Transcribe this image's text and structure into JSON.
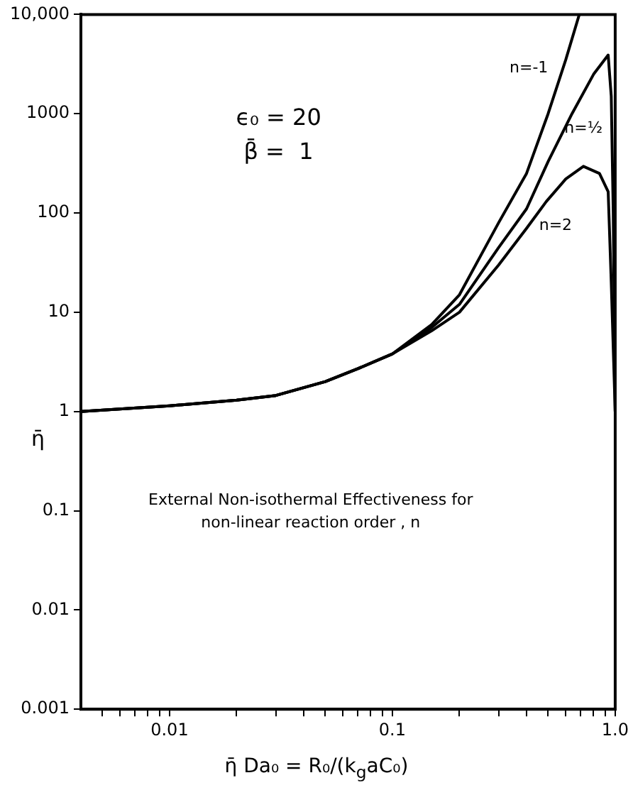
{
  "chart_data": {
    "type": "line",
    "xlabel": "η̄ Da₀ = R₀/(k$_{g}$aC₀)",
    "ylabel": "η̄",
    "log": "xy",
    "grid": false,
    "legend": false,
    "marker": "none",
    "line_style": "solid",
    "xlim": [
      0.004,
      1
    ],
    "ylim": [
      0.001,
      10000
    ],
    "xticks": [
      {
        "value": 0.005,
        "label": null
      },
      {
        "value": 0.006,
        "label": null
      },
      {
        "value": 0.007,
        "label": null
      },
      {
        "value": 0.008,
        "label": null
      },
      {
        "value": 0.009,
        "label": null
      },
      0.01,
      {
        "value": 0.02,
        "label": null
      },
      {
        "value": 0.03,
        "label": null
      },
      {
        "value": 0.04,
        "label": null
      },
      {
        "value": 0.05,
        "label": null
      },
      {
        "value": 0.06,
        "label": null
      },
      {
        "value": 0.07,
        "label": null
      },
      {
        "value": 0.08,
        "label": null
      },
      {
        "value": 0.09,
        "label": null
      },
      0.1,
      {
        "value": 0.2,
        "label": null
      },
      {
        "value": 0.3,
        "label": null
      },
      {
        "value": 0.4,
        "label": null
      },
      {
        "value": 0.5,
        "label": null
      },
      {
        "value": 0.6,
        "label": null
      },
      {
        "value": 0.7,
        "label": null
      },
      {
        "value": 0.8,
        "label": null
      },
      {
        "value": 0.9,
        "label": null
      },
      {
        "value": 1,
        "label": "1.0"
      }
    ],
    "yticks": [
      0.001,
      0.01,
      0.1,
      1,
      10,
      100,
      1000,
      {
        "value": 10000,
        "label": "10,000"
      }
    ],
    "annotations": [
      "ϵ₀ = 20",
      "β̄ =  1",
      "External Non-isothermal Effectiveness for non-linear reaction order , n"
    ],
    "series": [
      {
        "name": "n=-1",
        "color": "#000000",
        "x": [
          0.004,
          0.01,
          0.02,
          0.03,
          0.05,
          0.07,
          0.1,
          0.15,
          0.2,
          0.3,
          0.4,
          0.5,
          0.6,
          0.69
        ],
        "values": [
          1,
          1.14,
          1.3,
          1.45,
          2,
          2.7,
          3.8,
          7.5,
          15,
          80,
          250,
          1000,
          3500,
          10000
        ]
      },
      {
        "name": "n=½",
        "color": "#000000",
        "x": [
          0.004,
          0.01,
          0.02,
          0.03,
          0.05,
          0.07,
          0.1,
          0.15,
          0.2,
          0.3,
          0.4,
          0.5,
          0.64,
          0.8,
          0.93,
          0.96,
          0.98,
          1
        ],
        "values": [
          1,
          1.14,
          1.3,
          1.45,
          2,
          2.7,
          3.8,
          7,
          12,
          45,
          110,
          330,
          1000,
          2500,
          3900,
          1500,
          100,
          1
        ]
      },
      {
        "name": "n=2",
        "color": "#000000",
        "x": [
          0.004,
          0.01,
          0.02,
          0.03,
          0.05,
          0.07,
          0.1,
          0.15,
          0.2,
          0.3,
          0.4,
          0.49,
          0.6,
          0.72,
          0.85,
          0.93,
          0.96,
          1
        ],
        "values": [
          1,
          1.14,
          1.3,
          1.45,
          2,
          2.7,
          3.8,
          6.5,
          10,
          30,
          70,
          130,
          220,
          295,
          250,
          164,
          20,
          1
        ]
      }
    ]
  }
}
